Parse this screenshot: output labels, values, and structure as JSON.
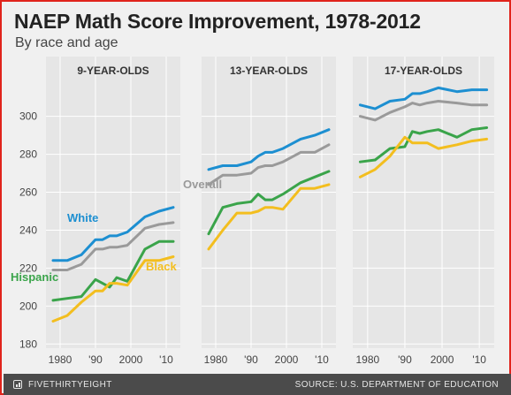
{
  "header": {
    "title": "NAEP Math Score Improvement, 1978-2012",
    "subtitle": "By race and age"
  },
  "footer": {
    "brand": "FIVETHIRTYEIGHT",
    "source": "SOURCE: U.S. DEPARTMENT OF EDUCATION"
  },
  "colors": {
    "White": "#1d8fd1",
    "Overall": "#9a9a9a",
    "Hispanic": "#3aa44a",
    "Black": "#f3be1f",
    "frame": "#e0241c"
  },
  "chart_data": [
    {
      "type": "line",
      "title": "9-YEAR-OLDS",
      "x": [
        1978,
        1982,
        1986,
        1990,
        1992,
        1994,
        1996,
        1999,
        2004,
        2008,
        2012
      ],
      "xticks": [
        "1980",
        "'90",
        "2000",
        "'10"
      ],
      "yticks": [
        180,
        200,
        220,
        240,
        260,
        280,
        300
      ],
      "ylim": [
        175,
        318
      ],
      "grid": true,
      "series": [
        {
          "name": "White",
          "values": [
            224,
            224,
            227,
            235,
            235,
            237,
            237,
            239,
            247,
            250,
            252
          ],
          "label": "White"
        },
        {
          "name": "Overall",
          "values": [
            219,
            219,
            222,
            230,
            230,
            231,
            231,
            232,
            241,
            243,
            244
          ],
          "label": "Overall"
        },
        {
          "name": "Hispanic",
          "values": [
            203,
            204,
            205,
            214,
            212,
            210,
            215,
            213,
            230,
            234,
            234
          ],
          "label": "Hispanic"
        },
        {
          "name": "Black",
          "values": [
            192,
            195,
            202,
            208,
            208,
            212,
            212,
            211,
            224,
            224,
            226
          ],
          "label": "Black"
        }
      ]
    },
    {
      "type": "line",
      "title": "13-YEAR-OLDS",
      "x": [
        1978,
        1982,
        1986,
        1990,
        1992,
        1994,
        1996,
        1999,
        2004,
        2008,
        2012
      ],
      "xticks": [
        "1980",
        "'90",
        "2000",
        "'10"
      ],
      "yticks": [
        180,
        200,
        220,
        240,
        260,
        280,
        300
      ],
      "ylim": [
        175,
        318
      ],
      "grid": true,
      "series": [
        {
          "name": "White",
          "values": [
            272,
            274,
            274,
            276,
            279,
            281,
            281,
            283,
            288,
            290,
            293
          ]
        },
        {
          "name": "Overall",
          "values": [
            264,
            269,
            269,
            270,
            273,
            274,
            274,
            276,
            281,
            281,
            285
          ],
          "label": "Overall"
        },
        {
          "name": "Hispanic",
          "values": [
            238,
            252,
            254,
            255,
            259,
            256,
            256,
            259,
            265,
            268,
            271
          ]
        },
        {
          "name": "Black",
          "values": [
            230,
            240,
            249,
            249,
            250,
            252,
            252,
            251,
            262,
            262,
            264
          ]
        }
      ]
    },
    {
      "type": "line",
      "title": "17-YEAR-OLDS",
      "x": [
        1978,
        1982,
        1986,
        1990,
        1992,
        1994,
        1996,
        1999,
        2004,
        2008,
        2012
      ],
      "xticks": [
        "1980",
        "'90",
        "2000",
        "'10"
      ],
      "yticks": [
        180,
        200,
        220,
        240,
        260,
        280,
        300
      ],
      "ylim": [
        175,
        318
      ],
      "grid": true,
      "series": [
        {
          "name": "White",
          "values": [
            306,
            304,
            308,
            309,
            312,
            312,
            313,
            315,
            313,
            314,
            314
          ]
        },
        {
          "name": "Overall",
          "values": [
            300,
            298,
            302,
            305,
            307,
            306,
            307,
            308,
            307,
            306,
            306
          ]
        },
        {
          "name": "Hispanic",
          "values": [
            276,
            277,
            283,
            284,
            292,
            291,
            292,
            293,
            289,
            293,
            294
          ]
        },
        {
          "name": "Black",
          "values": [
            268,
            272,
            279,
            289,
            286,
            286,
            286,
            283,
            285,
            287,
            288
          ]
        }
      ]
    }
  ]
}
